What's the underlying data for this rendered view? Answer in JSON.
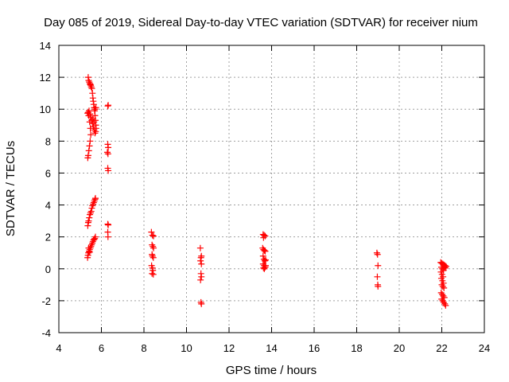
{
  "chart_data": {
    "type": "scatter",
    "title": "Day 085 of 2019, Sidereal Day-to-day VTEC variation (SDTVAR) for receiver nium",
    "xlabel": "GPS time / hours",
    "ylabel": "SDTVAR / TECUs",
    "xlim": [
      4,
      24
    ],
    "ylim": [
      -4,
      14
    ],
    "xticks": [
      4,
      6,
      8,
      10,
      12,
      14,
      16,
      18,
      20,
      22,
      24
    ],
    "yticks": [
      -4,
      -2,
      0,
      2,
      4,
      6,
      8,
      10,
      12,
      14
    ],
    "grid": true,
    "marker": "+",
    "color": "#ff0000",
    "points": [
      [
        5.38,
        12.0
      ],
      [
        5.4,
        11.8
      ],
      [
        5.43,
        11.7
      ],
      [
        5.46,
        11.6
      ],
      [
        5.48,
        11.55
      ],
      [
        5.5,
        11.5
      ],
      [
        5.52,
        11.4
      ],
      [
        5.55,
        11.3
      ],
      [
        5.58,
        11.0
      ],
      [
        5.6,
        10.7
      ],
      [
        5.62,
        10.5
      ],
      [
        5.64,
        10.3
      ],
      [
        5.66,
        10.1
      ],
      [
        5.68,
        9.9
      ],
      [
        5.7,
        9.6
      ],
      [
        5.72,
        9.3
      ],
      [
        5.74,
        9.0
      ],
      [
        5.75,
        8.8
      ],
      [
        5.73,
        8.6
      ],
      [
        5.7,
        8.5
      ],
      [
        5.66,
        8.7
      ],
      [
        5.62,
        8.9
      ],
      [
        5.58,
        9.1
      ],
      [
        5.54,
        9.3
      ],
      [
        5.5,
        9.5
      ],
      [
        5.46,
        9.7
      ],
      [
        5.42,
        9.9
      ],
      [
        5.38,
        9.8
      ],
      [
        5.35,
        9.75
      ],
      [
        5.4,
        9.6
      ],
      [
        5.45,
        9.2
      ],
      [
        5.48,
        8.8
      ],
      [
        5.5,
        8.4
      ],
      [
        5.47,
        8.0
      ],
      [
        5.44,
        7.7
      ],
      [
        5.41,
        7.4
      ],
      [
        5.38,
        7.1
      ],
      [
        5.36,
        6.95
      ],
      [
        5.6,
        9.4
      ],
      [
        5.65,
        9.2
      ],
      [
        5.7,
        10.0
      ],
      [
        5.74,
        10.1
      ],
      [
        6.3,
        10.2
      ],
      [
        6.32,
        10.25
      ],
      [
        6.3,
        7.8
      ],
      [
        6.32,
        7.6
      ],
      [
        6.28,
        7.3
      ],
      [
        6.31,
        7.2
      ],
      [
        6.3,
        6.3
      ],
      [
        6.32,
        6.15
      ],
      [
        5.36,
        2.7
      ],
      [
        5.38,
        2.9
      ],
      [
        5.4,
        3.0
      ],
      [
        5.43,
        3.2
      ],
      [
        5.46,
        3.4
      ],
      [
        5.49,
        3.5
      ],
      [
        5.52,
        3.6
      ],
      [
        5.55,
        3.8
      ],
      [
        5.58,
        3.95
      ],
      [
        5.61,
        4.05
      ],
      [
        5.64,
        4.15
      ],
      [
        5.67,
        4.25
      ],
      [
        5.7,
        4.35
      ],
      [
        5.72,
        4.42
      ],
      [
        5.35,
        0.7
      ],
      [
        5.37,
        0.85
      ],
      [
        5.39,
        1.0
      ],
      [
        5.42,
        1.1
      ],
      [
        5.45,
        1.2
      ],
      [
        5.48,
        1.3
      ],
      [
        5.51,
        1.4
      ],
      [
        5.54,
        1.5
      ],
      [
        5.57,
        1.6
      ],
      [
        5.6,
        1.7
      ],
      [
        5.63,
        1.8
      ],
      [
        5.66,
        1.85
      ],
      [
        5.69,
        1.9
      ],
      [
        5.72,
        2.0
      ],
      [
        5.4,
        1.3
      ],
      [
        5.45,
        1.05
      ],
      [
        6.3,
        2.8
      ],
      [
        6.32,
        2.75
      ],
      [
        6.3,
        2.3
      ],
      [
        6.31,
        2.0
      ],
      [
        8.35,
        2.3
      ],
      [
        8.4,
        2.1
      ],
      [
        8.45,
        2.05
      ],
      [
        8.38,
        1.5
      ],
      [
        8.42,
        1.4
      ],
      [
        8.45,
        1.3
      ],
      [
        8.38,
        0.9
      ],
      [
        8.4,
        0.8
      ],
      [
        8.44,
        0.7
      ],
      [
        8.36,
        0.2
      ],
      [
        8.4,
        0.05
      ],
      [
        8.42,
        -0.1
      ],
      [
        8.38,
        -0.3
      ],
      [
        8.44,
        -0.35
      ],
      [
        10.65,
        1.3
      ],
      [
        10.7,
        0.8
      ],
      [
        10.68,
        0.7
      ],
      [
        10.66,
        0.5
      ],
      [
        10.7,
        0.3
      ],
      [
        10.68,
        -0.3
      ],
      [
        10.7,
        -0.5
      ],
      [
        10.66,
        -0.7
      ],
      [
        10.68,
        -2.1
      ],
      [
        10.7,
        -2.2
      ],
      [
        13.6,
        2.15
      ],
      [
        13.65,
        2.1
      ],
      [
        13.7,
        2.05
      ],
      [
        13.62,
        1.95
      ],
      [
        13.58,
        1.3
      ],
      [
        13.62,
        1.2
      ],
      [
        13.66,
        1.15
      ],
      [
        13.7,
        1.1
      ],
      [
        13.6,
        0.8
      ],
      [
        13.64,
        0.6
      ],
      [
        13.68,
        0.5
      ],
      [
        13.72,
        0.55
      ],
      [
        13.6,
        0.3
      ],
      [
        13.65,
        0.2
      ],
      [
        13.7,
        0.1
      ],
      [
        13.62,
        0.05
      ],
      [
        13.66,
        0.0
      ],
      [
        13.72,
        0.2
      ],
      [
        18.95,
        1.0
      ],
      [
        18.98,
        0.9
      ],
      [
        19.0,
        0.2
      ],
      [
        18.97,
        -0.5
      ],
      [
        18.99,
        -1.0
      ],
      [
        19.0,
        -1.1
      ],
      [
        21.95,
        0.4
      ],
      [
        22.0,
        0.35
      ],
      [
        22.05,
        0.3
      ],
      [
        22.1,
        0.25
      ],
      [
        22.15,
        0.2
      ],
      [
        22.2,
        0.15
      ],
      [
        21.98,
        0.1
      ],
      [
        22.03,
        0.0
      ],
      [
        22.08,
        -0.1
      ],
      [
        21.96,
        -0.2
      ],
      [
        22.01,
        -0.35
      ],
      [
        22.06,
        -0.5
      ],
      [
        21.98,
        -0.6
      ],
      [
        22.03,
        -0.75
      ],
      [
        22.08,
        -0.9
      ],
      [
        22.0,
        -1.0
      ],
      [
        22.05,
        -1.1
      ],
      [
        22.1,
        -1.2
      ],
      [
        21.97,
        -1.5
      ],
      [
        22.02,
        -1.6
      ],
      [
        22.07,
        -1.7
      ],
      [
        22.12,
        -1.8
      ],
      [
        21.99,
        -1.9
      ],
      [
        22.04,
        -2.0
      ],
      [
        22.09,
        -2.1
      ],
      [
        22.14,
        -2.2
      ],
      [
        22.18,
        -2.3
      ],
      [
        22.12,
        0.1
      ],
      [
        22.16,
        0.05
      ]
    ]
  }
}
